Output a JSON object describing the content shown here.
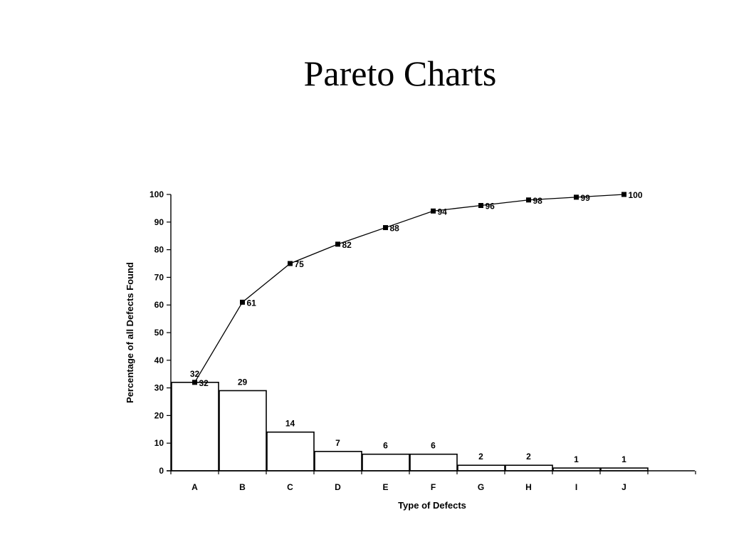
{
  "page": {
    "title": "Pareto Charts"
  },
  "chart_data": {
    "type": "bar",
    "title": "Pareto Charts",
    "xlabel": "Type of Defects",
    "ylabel": "Percentage of all Defects Found",
    "ylim": [
      0,
      100
    ],
    "yticks": [
      0,
      10,
      20,
      30,
      40,
      50,
      60,
      70,
      80,
      90,
      100
    ],
    "categories": [
      "A",
      "B",
      "C",
      "D",
      "E",
      "F",
      "G",
      "H",
      "I",
      "J"
    ],
    "series": [
      {
        "type": "bar",
        "values": [
          32,
          29,
          14,
          7,
          6,
          6,
          2,
          2,
          1,
          1
        ]
      },
      {
        "type": "line",
        "values": [
          32,
          61,
          75,
          82,
          88,
          94,
          96,
          98,
          99,
          100
        ]
      }
    ],
    "grid": false,
    "legend": "none"
  }
}
